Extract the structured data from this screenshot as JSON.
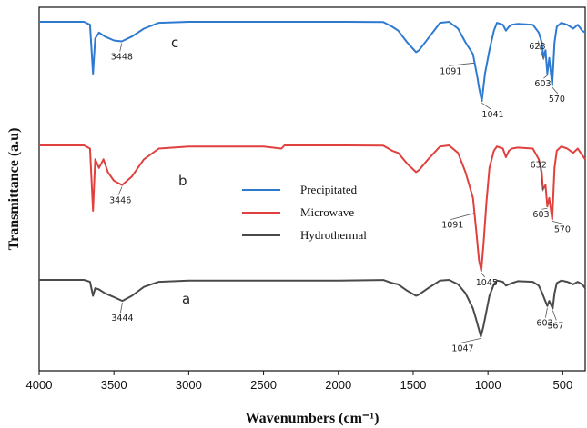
{
  "chart_data": {
    "type": "line",
    "xlabel": "Wavenumbers (cm⁻¹)",
    "ylabel": "Transmittance (a.u)",
    "xlim": [
      4000,
      350
    ],
    "x_reversed": true,
    "xticks": [
      4000,
      3500,
      3000,
      2500,
      2000,
      1500,
      1000,
      500
    ],
    "legend": {
      "placement": "center",
      "entries": [
        {
          "name": "Precipitated",
          "color": "#2f7ad1"
        },
        {
          "name": "Microwave",
          "color": "#e0413f"
        },
        {
          "name": "Hydrothermal",
          "color": "#4a4a4a"
        }
      ]
    },
    "series": [
      {
        "name": "Precipitated",
        "curve_label": "c",
        "color": "#2f7ad1",
        "x": [
          4000,
          3700,
          3660,
          3640,
          3625,
          3600,
          3560,
          3500,
          3448,
          3380,
          3300,
          3200,
          3000,
          2500,
          2000,
          1700,
          1640,
          1600,
          1540,
          1480,
          1460,
          1400,
          1320,
          1260,
          1200,
          1150,
          1100,
          1070,
          1060,
          1041,
          1020,
          990,
          960,
          940,
          900,
          880,
          860,
          840,
          800,
          700,
          660,
          640,
          628,
          615,
          603,
          590,
          570,
          555,
          540,
          510,
          470,
          430,
          400,
          370,
          350
        ],
        "y": [
          98.5,
          98.5,
          97,
          72,
          90,
          93,
          91,
          89,
          88.5,
          91,
          95,
          98,
          98.5,
          98.5,
          98.5,
          98.4,
          96,
          94,
          88,
          83,
          84,
          90,
          98,
          98.5,
          95,
          88,
          82,
          70,
          65,
          58,
          72,
          84,
          94,
          98,
          97,
          94,
          96,
          97,
          97.5,
          97,
          93,
          88,
          80,
          84,
          72,
          80,
          66,
          88,
          96,
          98,
          97,
          95,
          97,
          94,
          93
        ]
      },
      {
        "name": "Microwave",
        "curve_label": "b",
        "color": "#e0413f",
        "x": [
          4000,
          3700,
          3660,
          3640,
          3625,
          3600,
          3570,
          3540,
          3500,
          3446,
          3380,
          3300,
          3200,
          3000,
          2500,
          2380,
          2360,
          2000,
          1700,
          1640,
          1600,
          1540,
          1480,
          1460,
          1400,
          1320,
          1260,
          1200,
          1150,
          1100,
          1080,
          1060,
          1045,
          1030,
          1010,
          990,
          960,
          940,
          900,
          880,
          860,
          840,
          800,
          700,
          660,
          640,
          632,
          615,
          603,
          590,
          570,
          555,
          540,
          510,
          470,
          430,
          400,
          370,
          350
        ],
        "y": [
          98.5,
          98.5,
          97,
          68,
          92,
          88,
          92,
          86,
          82,
          80,
          84,
          92,
          97,
          98,
          98,
          97,
          98.5,
          98.5,
          98.4,
          96,
          95,
          90,
          86,
          87,
          92,
          98,
          98.5,
          95,
          86,
          74,
          60,
          45,
          40,
          52,
          72,
          88,
          96,
          98,
          97,
          93,
          96,
          97,
          97.5,
          97,
          92,
          86,
          78,
          80,
          70,
          74,
          64,
          88,
          96,
          98,
          97,
          95,
          97,
          94,
          92
        ]
      },
      {
        "name": "Hydrothermal",
        "curve_label": "a",
        "color": "#4a4a4a",
        "x": [
          4000,
          3700,
          3660,
          3640,
          3625,
          3600,
          3560,
          3500,
          3444,
          3380,
          3300,
          3200,
          3000,
          2500,
          2000,
          1700,
          1640,
          1600,
          1540,
          1480,
          1460,
          1400,
          1320,
          1260,
          1200,
          1150,
          1100,
          1080,
          1047,
          1030,
          1010,
          990,
          960,
          940,
          900,
          880,
          840,
          800,
          700,
          660,
          640,
          620,
          603,
          590,
          567,
          555,
          540,
          510,
          470,
          430,
          400,
          370,
          350
        ],
        "y": [
          98.5,
          98.5,
          97,
          86,
          92,
          91,
          88,
          85,
          82,
          86,
          93,
          97,
          98,
          98,
          98,
          98.4,
          96,
          95,
          90,
          86,
          87,
          92,
          98,
          98.5,
          95,
          88,
          76,
          68,
          54,
          62,
          74,
          86,
          95,
          98,
          97,
          94,
          96,
          97.5,
          97,
          94,
          89,
          83,
          78,
          82,
          76,
          88,
          96,
          98,
          97,
          95,
          97,
          95,
          92
        ]
      }
    ],
    "annotations": [
      {
        "series": "Precipitated",
        "text": "3448",
        "x": 3448
      },
      {
        "series": "Precipitated",
        "text": "1091",
        "x": 1091
      },
      {
        "series": "Precipitated",
        "text": "1041",
        "x": 1041
      },
      {
        "series": "Precipitated",
        "text": "628",
        "x": 628
      },
      {
        "series": "Precipitated",
        "text": "603",
        "x": 603
      },
      {
        "series": "Precipitated",
        "text": "570",
        "x": 570
      },
      {
        "series": "Microwave",
        "text": "3446",
        "x": 3446
      },
      {
        "series": "Microwave",
        "text": "1091",
        "x": 1091
      },
      {
        "series": "Microwave",
        "text": "1045",
        "x": 1045
      },
      {
        "series": "Microwave",
        "text": "632",
        "x": 632
      },
      {
        "series": "Microwave",
        "text": "603",
        "x": 603
      },
      {
        "series": "Microwave",
        "text": "570",
        "x": 570
      },
      {
        "series": "Hydrothermal",
        "text": "3444",
        "x": 3444
      },
      {
        "series": "Hydrothermal",
        "text": "1047",
        "x": 1047
      },
      {
        "series": "Hydrothermal",
        "text": "603",
        "x": 603
      },
      {
        "series": "Hydrothermal",
        "text": "567",
        "x": 567
      }
    ]
  }
}
